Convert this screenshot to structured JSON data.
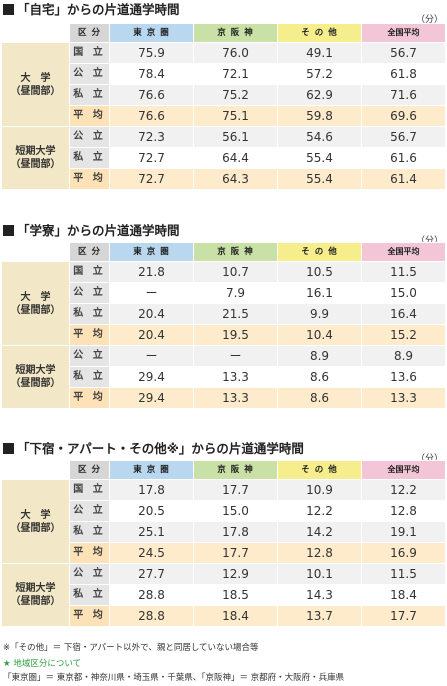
{
  "columns": {
    "kubun": "区 分",
    "tokyo": "東 京 圏",
    "keihanshin": "京 阪 神",
    "other": "そ の 他",
    "national": "全国平均"
  },
  "unit": "（分）",
  "sections": [
    {
      "title": "「自宅」からの片道通学時間",
      "groups": [
        {
          "label": "大　学\n（昼間部）",
          "rows": [
            {
              "label": "国 立",
              "values": [
                "75.9",
                "76.0",
                "49.1",
                "56.7"
              ]
            },
            {
              "label": "公 立",
              "values": [
                "78.4",
                "72.1",
                "57.2",
                "61.8"
              ]
            },
            {
              "label": "私 立",
              "values": [
                "76.6",
                "75.2",
                "62.9",
                "71.6"
              ]
            },
            {
              "label": "平 均",
              "values": [
                "76.6",
                "75.1",
                "59.8",
                "69.6"
              ],
              "avg": true
            }
          ]
        },
        {
          "label": "短期大学\n（昼間部）",
          "rows": [
            {
              "label": "公 立",
              "values": [
                "72.3",
                "56.1",
                "54.6",
                "56.7"
              ]
            },
            {
              "label": "私 立",
              "values": [
                "72.7",
                "64.4",
                "55.4",
                "61.6"
              ]
            },
            {
              "label": "平 均",
              "values": [
                "72.7",
                "64.3",
                "55.4",
                "61.4"
              ],
              "avg": true
            }
          ]
        }
      ]
    },
    {
      "title": "「学寮」からの片道通学時間",
      "groups": [
        {
          "label": "大　学\n（昼間部）",
          "rows": [
            {
              "label": "国 立",
              "values": [
                "21.8",
                "10.7",
                "10.5",
                "11.5"
              ]
            },
            {
              "label": "公 立",
              "values": [
                "ー",
                "7.9",
                "16.1",
                "15.0"
              ]
            },
            {
              "label": "私 立",
              "values": [
                "20.4",
                "21.5",
                "9.9",
                "16.4"
              ]
            },
            {
              "label": "平 均",
              "values": [
                "20.4",
                "19.5",
                "10.4",
                "15.2"
              ],
              "avg": true
            }
          ]
        },
        {
          "label": "短期大学\n（昼間部）",
          "rows": [
            {
              "label": "公 立",
              "values": [
                "ー",
                "ー",
                "8.9",
                "8.9"
              ]
            },
            {
              "label": "私 立",
              "values": [
                "29.4",
                "13.3",
                "8.6",
                "13.6"
              ]
            },
            {
              "label": "平 均",
              "values": [
                "29.4",
                "13.3",
                "8.6",
                "13.3"
              ],
              "avg": true
            }
          ]
        }
      ]
    },
    {
      "title": "「下宿・アパート・その他※」からの片道通学時間",
      "groups": [
        {
          "label": "大　学\n（昼間部）",
          "rows": [
            {
              "label": "国 立",
              "values": [
                "17.8",
                "17.7",
                "10.9",
                "12.2"
              ]
            },
            {
              "label": "公 立",
              "values": [
                "20.5",
                "15.0",
                "12.2",
                "12.8"
              ]
            },
            {
              "label": "私 立",
              "values": [
                "25.1",
                "17.8",
                "14.2",
                "19.1"
              ]
            },
            {
              "label": "平 均",
              "values": [
                "24.5",
                "17.7",
                "12.8",
                "16.9"
              ],
              "avg": true
            }
          ]
        },
        {
          "label": "短期大学\n（昼間部）",
          "rows": [
            {
              "label": "公 立",
              "values": [
                "27.7",
                "12.9",
                "10.1",
                "11.5"
              ]
            },
            {
              "label": "私 立",
              "values": [
                "28.8",
                "18.5",
                "14.3",
                "18.4"
              ]
            },
            {
              "label": "平 均",
              "values": [
                "28.8",
                "18.4",
                "13.7",
                "17.7"
              ],
              "avg": true
            }
          ]
        }
      ]
    }
  ],
  "footnotes": {
    "note": "※「その他」＝ 下宿・アパート以外で、親と同居していない場合等",
    "region_star": "★",
    "region_title": "地域区分について",
    "region_desc": "「東京圏」＝ 東京都・神奈川県・埼玉県・千葉県、「京阪神」＝ 京都府・大阪府・兵庫県"
  }
}
